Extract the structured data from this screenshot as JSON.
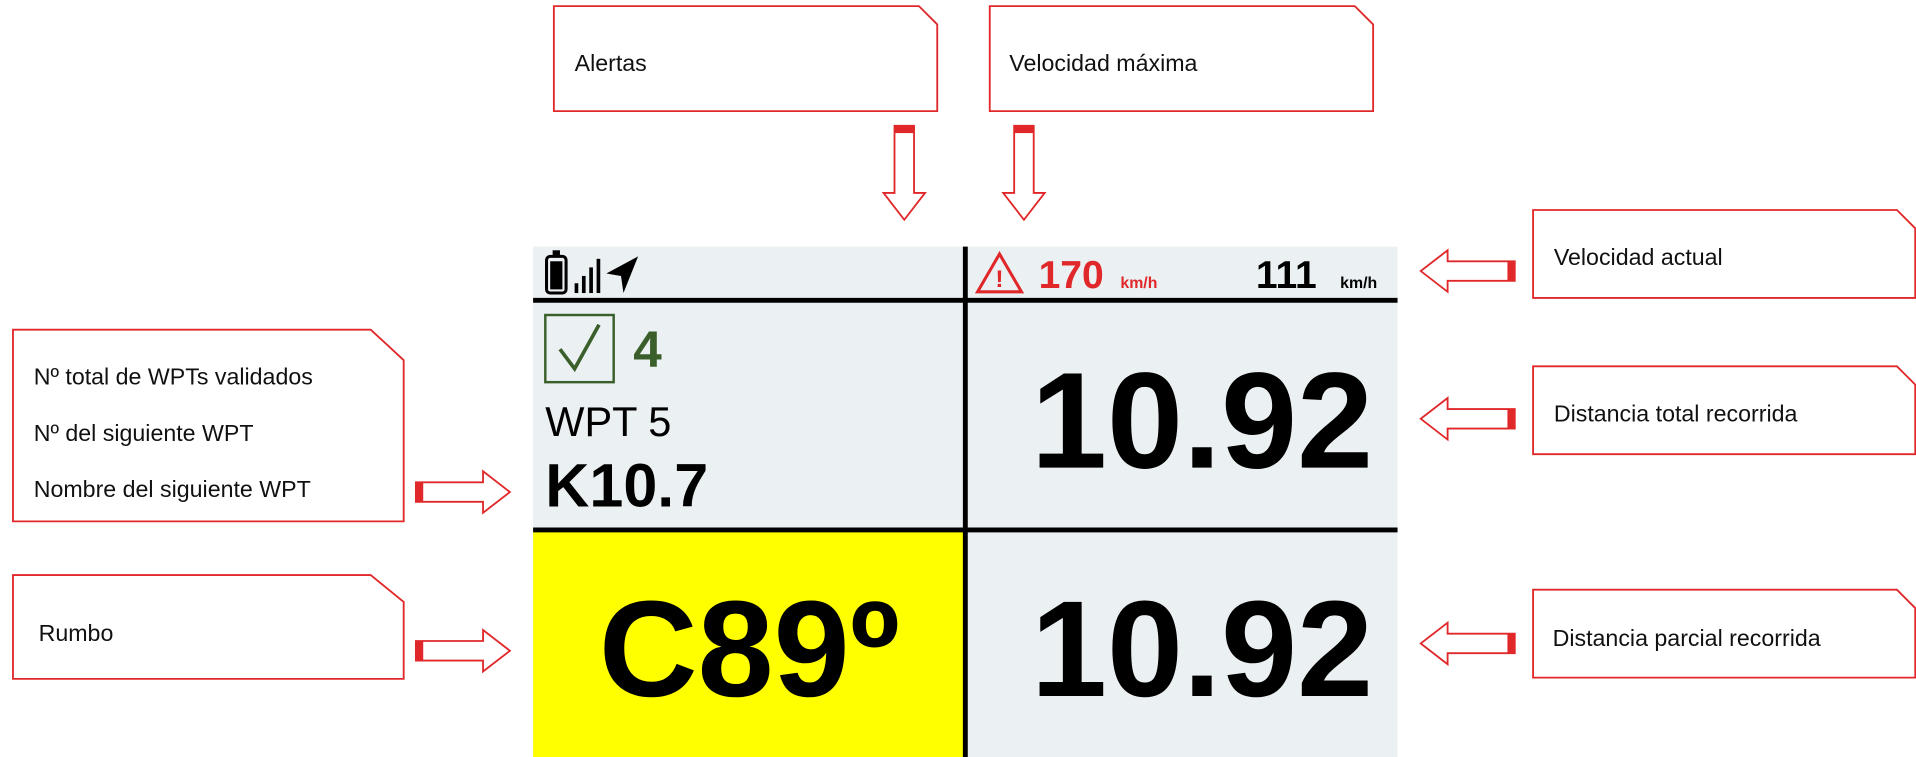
{
  "callouts": {
    "alerts": "Alertas",
    "max_speed": "Velocidad máxima",
    "current_speed": "Velocidad actual",
    "total_distance": "Distancia total recorrida",
    "partial_distance": "Distancia parcial recorrida",
    "waypoints": [
      "Nº total de WPTs validados",
      "Nº del siguiente WPT",
      "Nombre del siguiente WPT"
    ],
    "heading": "Rumbo"
  },
  "display": {
    "max_speed": "170",
    "max_speed_unit": "km/h",
    "current_speed": "111",
    "current_speed_unit": "km/h",
    "validated_count": "4",
    "next_wpt": "WPT 5",
    "next_wpt_name": "K10.7",
    "total_distance": "10.92",
    "heading": "C89º",
    "partial_distance": "10.92"
  }
}
